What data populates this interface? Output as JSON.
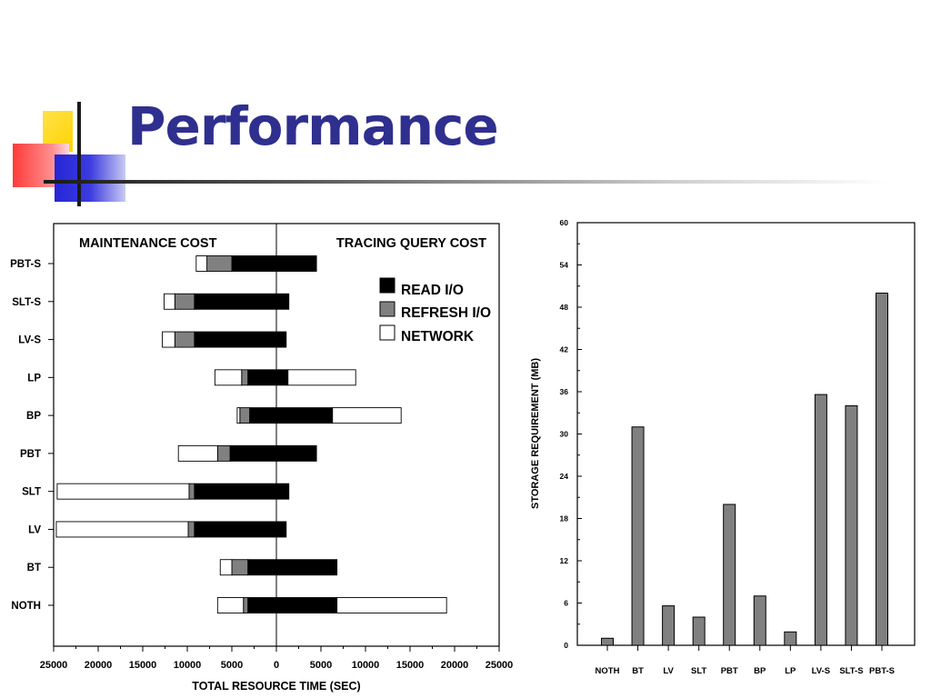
{
  "slide": {
    "title": "Performance"
  },
  "chart_data": [
    {
      "type": "bar",
      "orientation": "horizontal-stacked-diverging",
      "title_left": "MAINTENANCE COST",
      "title_right": "TRACING QUERY COST",
      "xlabel": "TOTAL RESOURCE TIME (SEC)",
      "ylabel": "",
      "xlim": [
        -25000,
        25000
      ],
      "x_tick_values": [
        -25000,
        -20000,
        -15000,
        -10000,
        -5000,
        0,
        5000,
        10000,
        15000,
        20000,
        25000
      ],
      "x_tick_labels": [
        "25000",
        "20000",
        "15000",
        "10000",
        "5000",
        "0",
        "5000",
        "10000",
        "15000",
        "20000",
        "25000"
      ],
      "categories": [
        "PBT-S",
        "SLT-S",
        "LV-S",
        "LP",
        "BP",
        "PBT",
        "SLT",
        "LV",
        "BT",
        "NOTH"
      ],
      "legend": [
        {
          "label": "READ I/O",
          "color": "#000000"
        },
        {
          "label": "REFRESH I/O",
          "color": "#808080"
        },
        {
          "label": "NETWORK",
          "color": "#ffffff"
        }
      ],
      "legend_position": "top-right",
      "maintenance": {
        "read_io": [
          5000,
          9200,
          9200,
          3200,
          3000,
          5200,
          9200,
          9200,
          3200,
          3200
        ],
        "refresh_io": [
          2800,
          2200,
          2200,
          700,
          1100,
          1400,
          600,
          700,
          1800,
          500
        ],
        "network": [
          1200,
          1200,
          1400,
          3000,
          300,
          4400,
          14800,
          14800,
          1300,
          2900
        ]
      },
      "tracing": {
        "read_io": [
          4500,
          1400,
          1100,
          1300,
          6300,
          4500,
          1400,
          1100,
          6800,
          6800
        ],
        "refresh_io": [
          0,
          0,
          0,
          0,
          0,
          0,
          0,
          0,
          0,
          0
        ],
        "network": [
          0,
          0,
          0,
          7600,
          7700,
          0,
          0,
          0,
          0,
          12300
        ]
      }
    },
    {
      "type": "bar",
      "ylabel": "STORAGE REQUIREMENT (MB)",
      "xlabel": "",
      "ylim": [
        0,
        60
      ],
      "y_tick_values": [
        0,
        6,
        12,
        18,
        24,
        30,
        36,
        42,
        48,
        54,
        60
      ],
      "categories": [
        "NOTH",
        "BT",
        "LV",
        "SLT",
        "PBT",
        "BP",
        "LP",
        "LV-S",
        "SLT-S",
        "PBT-S"
      ],
      "values": [
        1,
        31,
        5.6,
        4,
        20,
        7,
        1.9,
        35.6,
        34,
        50
      ],
      "bar_color": "#808080"
    }
  ]
}
